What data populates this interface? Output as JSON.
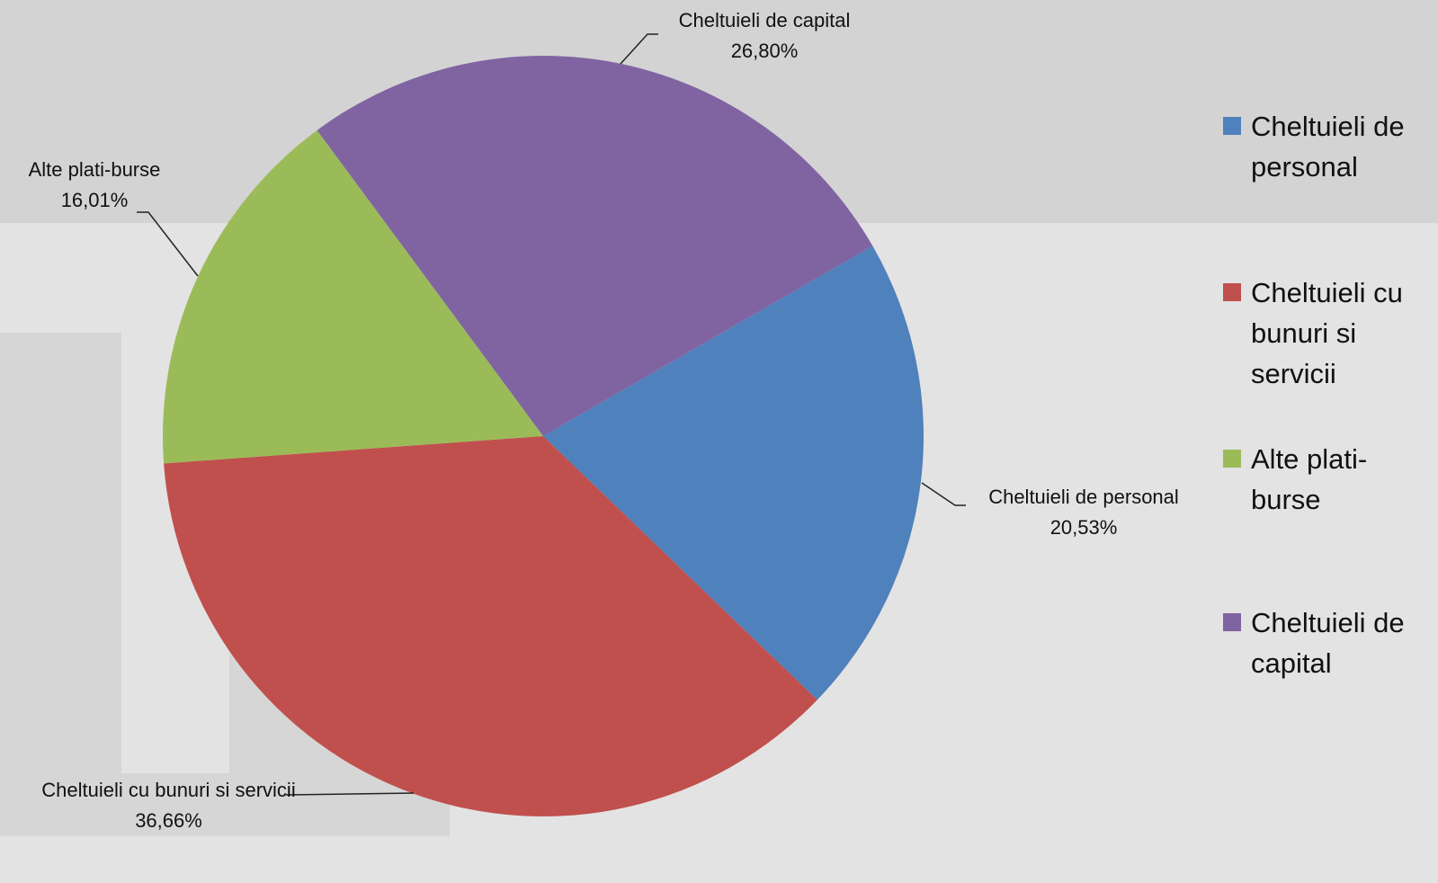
{
  "chart_data": {
    "type": "pie",
    "categories": [
      "Cheltuieli de personal",
      "Cheltuieli cu bunuri si servicii",
      "Alte plati-burse",
      "Cheltuieli de capital"
    ],
    "values": [
      20.53,
      36.66,
      16.01,
      26.8
    ],
    "value_labels": [
      "20,53%",
      "36,66%",
      "16,01%",
      "26,80%"
    ],
    "colors": [
      "#4f81bd",
      "#c0504d",
      "#9bbb59",
      "#8064a2"
    ],
    "legend": "right"
  }
}
